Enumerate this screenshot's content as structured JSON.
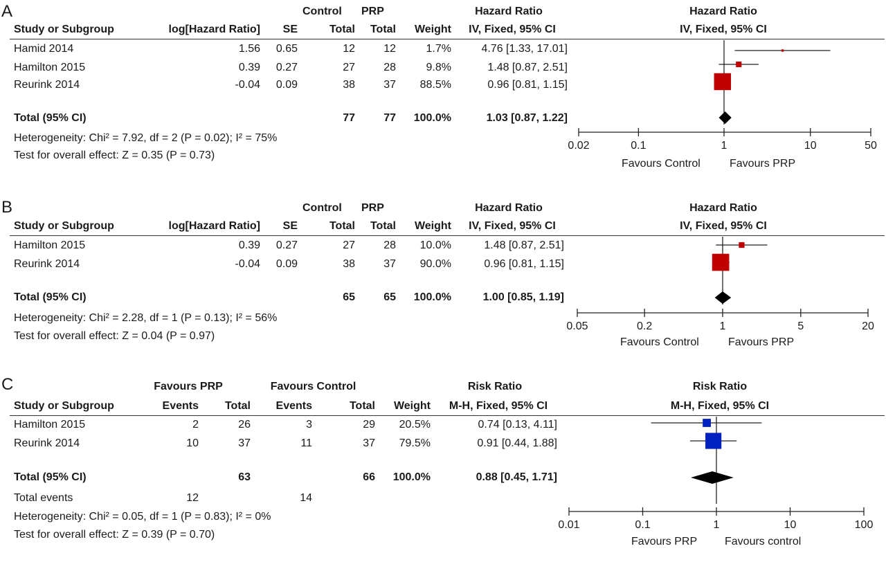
{
  "panels": [
    {
      "label": "A",
      "headers": {
        "group": [
          "Control",
          "PRP"
        ],
        "effect_top": "Hazard Ratio",
        "cols": [
          "Study or Subgroup",
          "log[Hazard Ratio]",
          "SE",
          "Total",
          "Total",
          "Weight",
          "IV, Fixed, 95% CI"
        ],
        "plot_top": "Hazard Ratio",
        "plot_sub": "IV, Fixed, 95% CI"
      },
      "studies": [
        {
          "name": "Hamid 2014",
          "log_hr": "1.56",
          "se": "0.65",
          "control_total": "12",
          "prp_total": "12",
          "weight": "1.7%",
          "ci_text": "4.76 [1.33, 17.01]"
        },
        {
          "name": "Hamilton 2015",
          "log_hr": "0.39",
          "se": "0.27",
          "control_total": "27",
          "prp_total": "28",
          "weight": "9.8%",
          "ci_text": "1.48 [0.87, 2.51]"
        },
        {
          "name": "Reurink 2014",
          "log_hr": "-0.04",
          "se": "0.09",
          "control_total": "38",
          "prp_total": "37",
          "weight": "88.5%",
          "ci_text": "0.96 [0.81, 1.15]"
        }
      ],
      "total": {
        "name": "Total (95% CI)",
        "control_total": "77",
        "prp_total": "77",
        "weight": "100.0%",
        "ci_text": "1.03 [0.87, 1.22]"
      },
      "heterogeneity": "Heterogeneity: Chi² = 7.92, df = 2 (P = 0.02); I² = 75%",
      "overall": "Test for overall effect: Z = 0.35 (P = 0.73)",
      "axis": {
        "ticks": [
          "0.02",
          "0.1",
          "1",
          "10",
          "50"
        ],
        "left_label": "Favours Control",
        "right_label": "Favours PRP"
      }
    },
    {
      "label": "B",
      "headers": {
        "group": [
          "Control",
          "PRP"
        ],
        "effect_top": "Hazard Ratio",
        "cols": [
          "Study or Subgroup",
          "log[Hazard Ratio]",
          "SE",
          "Total",
          "Total",
          "Weight",
          "IV, Fixed, 95% CI"
        ],
        "plot_top": "Hazard Ratio",
        "plot_sub": "IV, Fixed, 95% CI"
      },
      "studies": [
        {
          "name": "Hamilton 2015",
          "log_hr": "0.39",
          "se": "0.27",
          "control_total": "27",
          "prp_total": "28",
          "weight": "10.0%",
          "ci_text": "1.48 [0.87, 2.51]"
        },
        {
          "name": "Reurink 2014",
          "log_hr": "-0.04",
          "se": "0.09",
          "control_total": "38",
          "prp_total": "37",
          "weight": "90.0%",
          "ci_text": "0.96 [0.81, 1.15]"
        }
      ],
      "total": {
        "name": "Total (95% CI)",
        "control_total": "65",
        "prp_total": "65",
        "weight": "100.0%",
        "ci_text": "1.00 [0.85, 1.19]"
      },
      "heterogeneity": "Heterogeneity: Chi² = 2.28, df = 1 (P = 0.13); I² = 56%",
      "overall": "Test for overall effect: Z = 0.04 (P = 0.97)",
      "axis": {
        "ticks": [
          "0.05",
          "0.2",
          "1",
          "5",
          "20"
        ],
        "left_label": "Favours Control",
        "right_label": "Favours PRP"
      }
    },
    {
      "label": "C",
      "headers": {
        "group": [
          "Favours PRP",
          "Favours Control"
        ],
        "effect_top": "Risk Ratio",
        "cols": [
          "Study or Subgroup",
          "Events",
          "Total",
          "Events",
          "Total",
          "Weight",
          "M-H, Fixed, 95% CI"
        ],
        "plot_top": "Risk Ratio",
        "plot_sub": "M-H, Fixed, 95% CI"
      },
      "studies": [
        {
          "name": "Hamilton 2015",
          "prp_events": "2",
          "prp_total": "26",
          "control_events": "3",
          "control_total": "29",
          "weight": "20.5%",
          "ci_text": "0.74 [0.13, 4.11]"
        },
        {
          "name": "Reurink 2014",
          "prp_events": "10",
          "prp_total": "37",
          "control_events": "11",
          "control_total": "37",
          "weight": "79.5%",
          "ci_text": "0.91 [0.44, 1.88]"
        }
      ],
      "total": {
        "name": "Total (95% CI)",
        "prp_total": "63",
        "control_total": "66",
        "weight": "100.0%",
        "ci_text": "0.88 [0.45, 1.71]"
      },
      "total_events": {
        "label": "Total events",
        "prp": "12",
        "control": "14"
      },
      "heterogeneity": "Heterogeneity: Chi² = 0.05, df = 1 (P = 0.83); I² = 0%",
      "overall": "Test for overall effect: Z = 0.39 (P = 0.70)",
      "axis": {
        "ticks": [
          "0.01",
          "0.1",
          "1",
          "10",
          "100"
        ],
        "left_label": "Favours PRP",
        "right_label": "Favours control"
      }
    }
  ],
  "chart_data": [
    {
      "type": "forest",
      "scale": "log",
      "xlim": [
        0.02,
        50
      ],
      "xticks": [
        0.02,
        0.1,
        1,
        10,
        50
      ],
      "marker_color": "#c00000",
      "studies": [
        {
          "name": "Hamid 2014",
          "estimate": 4.76,
          "lower": 1.33,
          "upper": 17.01,
          "weight": 1.7
        },
        {
          "name": "Hamilton 2015",
          "estimate": 1.48,
          "lower": 0.87,
          "upper": 2.51,
          "weight": 9.8
        },
        {
          "name": "Reurink 2014",
          "estimate": 0.96,
          "lower": 0.81,
          "upper": 1.15,
          "weight": 88.5
        }
      ],
      "pooled": {
        "estimate": 1.03,
        "lower": 0.87,
        "upper": 1.22
      }
    },
    {
      "type": "forest",
      "scale": "log",
      "xlim": [
        0.05,
        20
      ],
      "xticks": [
        0.05,
        0.2,
        1,
        5,
        20
      ],
      "marker_color": "#c00000",
      "studies": [
        {
          "name": "Hamilton 2015",
          "estimate": 1.48,
          "lower": 0.87,
          "upper": 2.51,
          "weight": 10.0
        },
        {
          "name": "Reurink 2014",
          "estimate": 0.96,
          "lower": 0.81,
          "upper": 1.15,
          "weight": 90.0
        }
      ],
      "pooled": {
        "estimate": 1.0,
        "lower": 0.85,
        "upper": 1.19
      }
    },
    {
      "type": "forest",
      "scale": "log",
      "xlim": [
        0.01,
        100
      ],
      "xticks": [
        0.01,
        0.1,
        1,
        10,
        100
      ],
      "marker_color": "#0020c0",
      "studies": [
        {
          "name": "Hamilton 2015",
          "estimate": 0.74,
          "lower": 0.13,
          "upper": 4.11,
          "weight": 20.5
        },
        {
          "name": "Reurink 2014",
          "estimate": 0.91,
          "lower": 0.44,
          "upper": 1.88,
          "weight": 79.5
        }
      ],
      "pooled": {
        "estimate": 0.88,
        "lower": 0.45,
        "upper": 1.71
      }
    }
  ]
}
